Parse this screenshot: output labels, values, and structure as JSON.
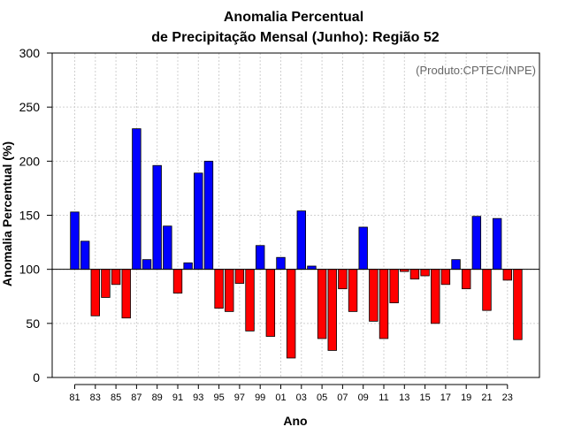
{
  "chart_data": {
    "type": "bar",
    "title_line1": "Anomalia Percentual",
    "title_line2": "de Precipitação Mensal (Junho): Região 52",
    "xlabel": "Ano",
    "ylabel": "Anomalia Percentual (%)",
    "credit": "(Produto:CPTEC/INPE)",
    "ylim": [
      0,
      300
    ],
    "yticks": [
      "0",
      "50",
      "100",
      "150",
      "200",
      "250",
      "300"
    ],
    "baseline": 100,
    "grid": true,
    "colors": {
      "above": "#0000ff",
      "below": "#ff0000",
      "edge": "#000000",
      "grid": "#d0d0d0"
    },
    "x_tick_labels": [
      "81",
      "83",
      "85",
      "87",
      "89",
      "91",
      "93",
      "95",
      "97",
      "99",
      "01",
      "03",
      "05",
      "07",
      "09",
      "11",
      "13",
      "15",
      "17",
      "19",
      "21",
      "23"
    ],
    "categories": [
      "1981",
      "1982",
      "1983",
      "1984",
      "1985",
      "1986",
      "1987",
      "1988",
      "1989",
      "1990",
      "1991",
      "1992",
      "1993",
      "1994",
      "1995",
      "1996",
      "1997",
      "1998",
      "1999",
      "2000",
      "2001",
      "2002",
      "2003",
      "2004",
      "2005",
      "2006",
      "2007",
      "2008",
      "2009",
      "2010",
      "2011",
      "2012",
      "2013",
      "2014",
      "2015",
      "2016",
      "2017",
      "2018",
      "2019",
      "2020",
      "2021",
      "2022",
      "2023",
      "2024"
    ],
    "values": [
      153,
      126,
      57,
      74,
      86,
      55,
      230,
      109,
      196,
      140,
      78,
      106,
      189,
      200,
      64,
      61,
      87,
      43,
      122,
      38,
      111,
      18,
      154,
      103,
      36,
      25,
      82,
      61,
      139,
      52,
      36,
      69,
      98,
      91,
      94,
      50,
      86,
      109,
      82,
      149,
      62,
      147,
      90,
      35
    ]
  }
}
